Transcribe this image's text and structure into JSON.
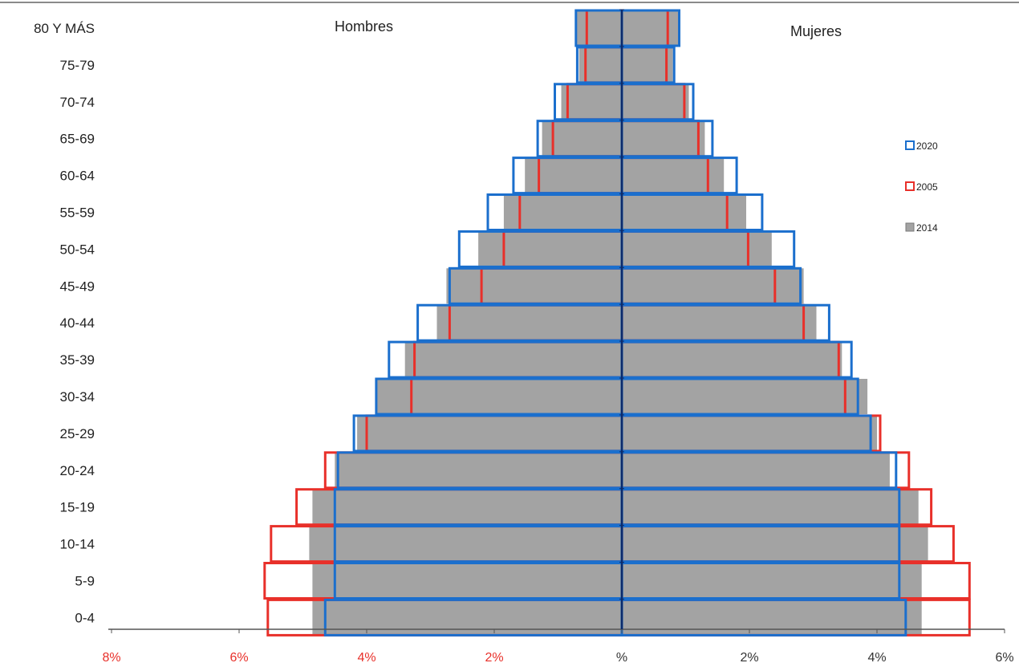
{
  "chart_data": {
    "type": "bar",
    "orientation": "horizontal-population-pyramid",
    "left_label": "Hombres",
    "right_label": "Mujeres",
    "categories": [
      "80 Y MÁS",
      "75-79",
      "70-74",
      "65-69",
      "60-64",
      "55-59",
      "50-54",
      "45-49",
      "40-44",
      "35-39",
      "30-34",
      "25-29",
      "20-24",
      "15-19",
      "10-14",
      "5-9",
      "0-4"
    ],
    "xlim": [
      -8,
      6
    ],
    "x_ticks": [
      {
        "value": -8,
        "label": "8%",
        "color": "#e8302a"
      },
      {
        "value": -6,
        "label": "6%",
        "color": "#e8302a"
      },
      {
        "value": -4,
        "label": "4%",
        "color": "#e8302a"
      },
      {
        "value": -2,
        "label": "2%",
        "color": "#e8302a"
      },
      {
        "value": 0,
        "label": "%",
        "color": "#333333"
      },
      {
        "value": 2,
        "label": "2%",
        "color": "#333333"
      },
      {
        "value": 4,
        "label": "4%",
        "color": "#333333"
      },
      {
        "value": 6,
        "label": "6%",
        "color": "#333333"
      }
    ],
    "series": [
      {
        "name": "2014",
        "style": "filled",
        "color": "#a3a3a3",
        "men": [
          0.72,
          0.67,
          0.95,
          1.25,
          1.52,
          1.85,
          2.25,
          2.75,
          2.9,
          3.4,
          3.85,
          4.15,
          4.5,
          4.85,
          4.9,
          4.85,
          4.85
        ],
        "women": [
          0.9,
          0.8,
          1.05,
          1.3,
          1.6,
          1.95,
          2.35,
          2.85,
          3.05,
          3.45,
          3.85,
          4.0,
          4.2,
          4.65,
          4.8,
          4.7,
          4.7
        ]
      },
      {
        "name": "2005",
        "style": "outline",
        "color": "#e8302a",
        "men": [
          0.55,
          0.57,
          0.85,
          1.08,
          1.3,
          1.6,
          1.85,
          2.2,
          2.7,
          3.25,
          3.3,
          4.0,
          4.65,
          5.1,
          5.5,
          5.6,
          5.55
        ],
        "women": [
          0.72,
          0.7,
          0.98,
          1.2,
          1.35,
          1.65,
          1.98,
          2.4,
          2.85,
          3.4,
          3.5,
          4.05,
          4.5,
          4.85,
          5.2,
          5.45,
          5.45
        ]
      },
      {
        "name": "2020",
        "style": "outline",
        "color": "#1b6fcd",
        "men": [
          0.72,
          0.7,
          1.05,
          1.32,
          1.7,
          2.1,
          2.55,
          2.7,
          3.2,
          3.65,
          3.85,
          4.2,
          4.45,
          4.5,
          4.5,
          4.5,
          4.65
        ],
        "women": [
          0.9,
          0.82,
          1.12,
          1.42,
          1.8,
          2.2,
          2.7,
          2.8,
          3.25,
          3.6,
          3.7,
          3.9,
          4.3,
          4.35,
          4.35,
          4.35,
          4.45
        ]
      }
    ],
    "legend": {
      "position": "right",
      "order": [
        "2020",
        "2005",
        "2014"
      ]
    },
    "grid": false
  }
}
